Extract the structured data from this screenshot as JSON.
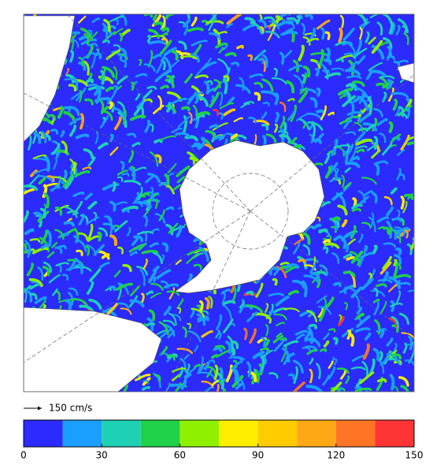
{
  "map": {
    "reference_arrow": {
      "label": "150 cm/s"
    }
  },
  "colorbar": {
    "bins": [
      0,
      15,
      30,
      45,
      60,
      75,
      90,
      105,
      120,
      135,
      150
    ],
    "colors": [
      "#2b2bff",
      "#1a9fff",
      "#1fd1b4",
      "#1fd148",
      "#8ff000",
      "#ffee00",
      "#ffcc00",
      "#ffa815",
      "#ff7425",
      "#ff3535"
    ],
    "ticks": [
      0,
      30,
      60,
      90,
      120,
      150
    ]
  }
}
